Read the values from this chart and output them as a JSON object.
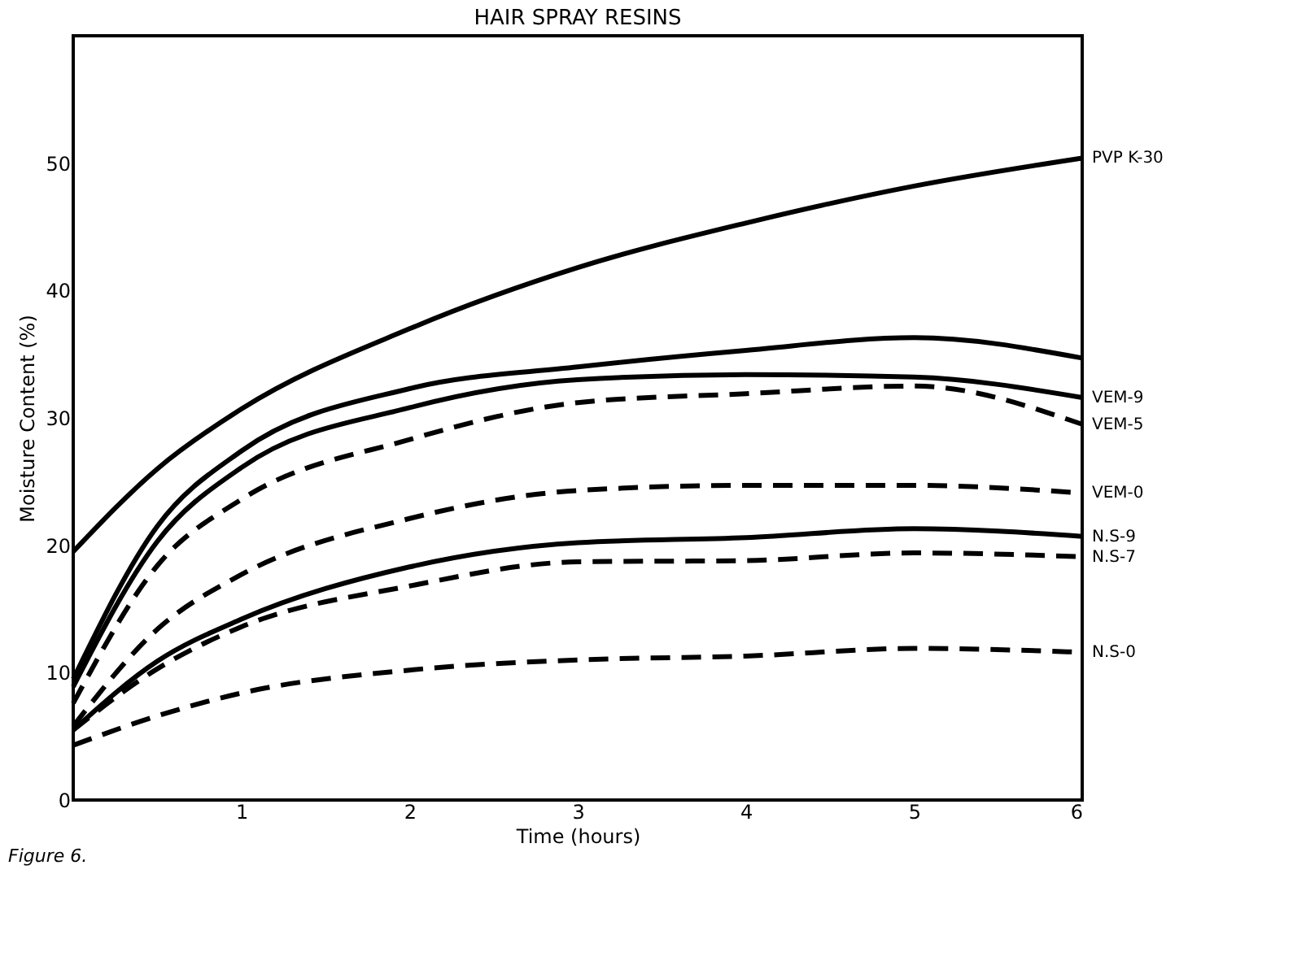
{
  "chart_data": {
    "type": "line",
    "title": "HAIR SPRAY RESINS",
    "xlabel": "Time (hours)",
    "ylabel": "Moisture Content (%)",
    "x": [
      0,
      0.5,
      1,
      2,
      3,
      4,
      5,
      6
    ],
    "series": [
      {
        "name": "PVP K-30",
        "color": "#000000",
        "line_style": "solid",
        "values": [
          19.5,
          26,
          30.7,
          37,
          41.8,
          45.3,
          48.2,
          50.4
        ]
      },
      {
        "color": "#000000",
        "line_style": "solid",
        "values": [
          9.5,
          21.5,
          27.4,
          32.3,
          34,
          35.3,
          36.3,
          34.7
        ]
      },
      {
        "name": "VEM-9",
        "color": "#000000",
        "line_style": "solid",
        "values": [
          8.9,
          20.3,
          26.1,
          30.8,
          33,
          33.4,
          33.2,
          31.6
        ]
      },
      {
        "name": "VEM-5",
        "color": "#000000",
        "line_style": "dashed",
        "values": [
          7.6,
          18.4,
          23.6,
          28.3,
          31.2,
          31.9,
          32.5,
          29.5
        ]
      },
      {
        "name": "VEM-0",
        "color": "#000000",
        "line_style": "dashed",
        "values": [
          5.8,
          13.4,
          17.7,
          22.1,
          24.3,
          24.7,
          24.7,
          24.1
        ]
      },
      {
        "name": "N.S-9",
        "color": "#000000",
        "line_style": "solid",
        "values": [
          5.5,
          10.9,
          14.2,
          18.3,
          20.2,
          20.6,
          21.3,
          20.7
        ]
      },
      {
        "name": "N.S-7",
        "color": "#000000",
        "line_style": "dashed",
        "values": [
          5.5,
          10.3,
          13.6,
          16.8,
          18.7,
          18.8,
          19.4,
          19.1
        ]
      },
      {
        "name": "N.S-0",
        "color": "#000000",
        "line_style": "dashed",
        "values": [
          4.3,
          6.6,
          8.4,
          10.2,
          11,
          11.3,
          11.9,
          11.6
        ]
      }
    ],
    "xlim": [
      0,
      6
    ],
    "xticks": [
      1,
      2,
      3,
      4,
      5,
      6
    ],
    "ylim": [
      0,
      60
    ],
    "yticks": [
      0,
      10,
      20,
      30,
      40,
      50
    ],
    "grid": false,
    "legend": false,
    "marker": "none",
    "annotations": [
      "Figure 6."
    ]
  }
}
